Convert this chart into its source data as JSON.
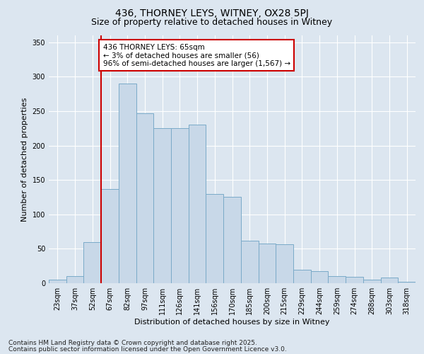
{
  "title1": "436, THORNEY LEYS, WITNEY, OX28 5PJ",
  "title2": "Size of property relative to detached houses in Witney",
  "xlabel": "Distribution of detached houses by size in Witney",
  "ylabel": "Number of detached properties",
  "categories": [
    "23sqm",
    "37sqm",
    "52sqm",
    "67sqm",
    "82sqm",
    "97sqm",
    "111sqm",
    "126sqm",
    "141sqm",
    "156sqm",
    "170sqm",
    "185sqm",
    "200sqm",
    "215sqm",
    "229sqm",
    "244sqm",
    "259sqm",
    "274sqm",
    "288sqm",
    "303sqm",
    "318sqm"
  ],
  "values": [
    5,
    10,
    60,
    137,
    290,
    247,
    225,
    225,
    230,
    130,
    125,
    62,
    58,
    57,
    20,
    17,
    10,
    9,
    5,
    8,
    2
  ],
  "bar_color": "#c8d8e8",
  "bar_edge_color": "#7aaac8",
  "vline_color": "#cc0000",
  "annotation_text": "436 THORNEY LEYS: 65sqm\n← 3% of detached houses are smaller (56)\n96% of semi-detached houses are larger (1,567) →",
  "annotation_box_color": "#ffffff",
  "annotation_box_edge": "#cc0000",
  "ylim": [
    0,
    360
  ],
  "yticks": [
    0,
    50,
    100,
    150,
    200,
    250,
    300,
    350
  ],
  "footer1": "Contains HM Land Registry data © Crown copyright and database right 2025.",
  "footer2": "Contains public sector information licensed under the Open Government Licence v3.0.",
  "bg_color": "#dce6f0",
  "plot_bg_color": "#dce6f0",
  "title1_fontsize": 10,
  "title2_fontsize": 9,
  "tick_fontsize": 7,
  "label_fontsize": 8,
  "annotation_fontsize": 7.5,
  "footer_fontsize": 6.5
}
